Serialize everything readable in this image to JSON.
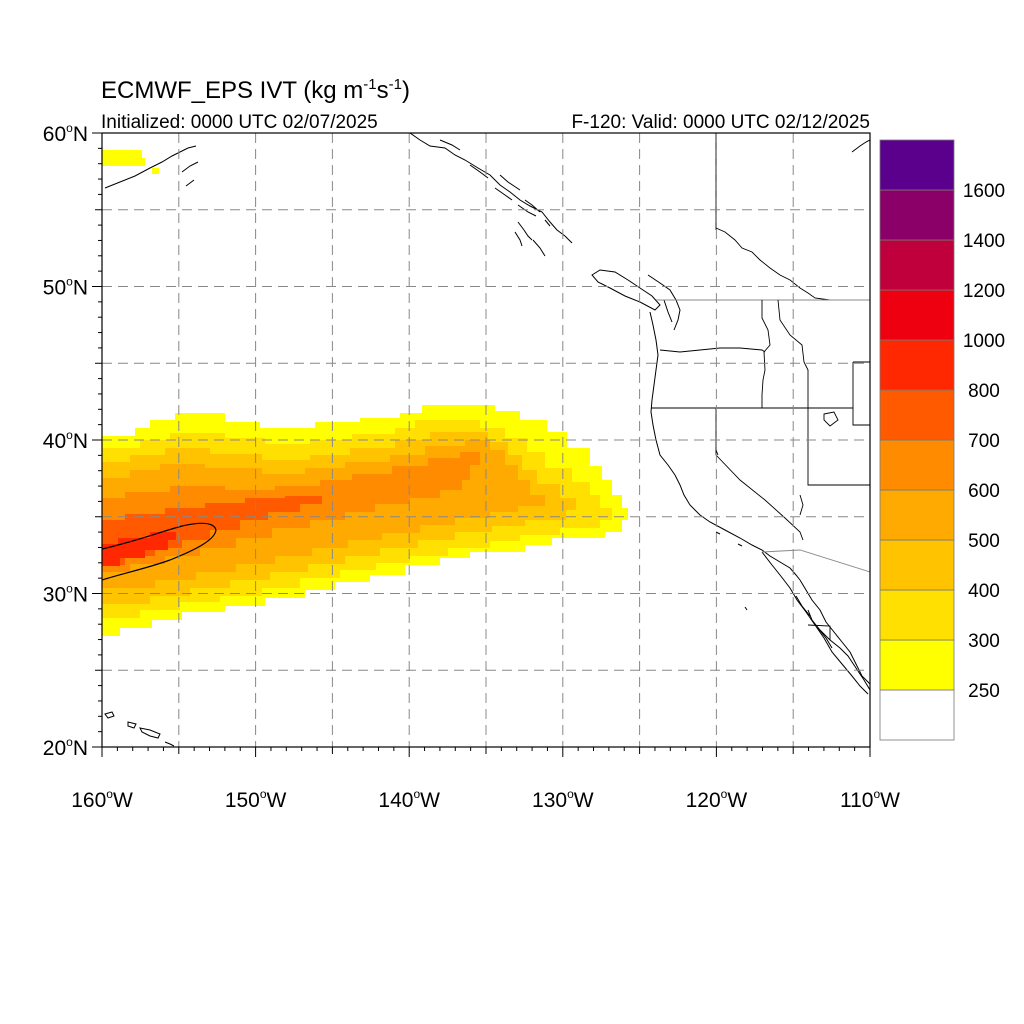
{
  "title": {
    "main": "ECMWF_EPS IVT (kg m",
    "sup1": "-1",
    "mid": "s",
    "sup2": "-1",
    "close": ")"
  },
  "subtitle": {
    "initialized": "Initialized: 0000 UTC 02/07/2025",
    "valid": "F-120: Valid: 0000 UTC 02/12/2025"
  },
  "axes": {
    "lat_labels": [
      {
        "deg": "60",
        "hemi": "N",
        "value": 60
      },
      {
        "deg": "50",
        "hemi": "N",
        "value": 50
      },
      {
        "deg": "40",
        "hemi": "N",
        "value": 40
      },
      {
        "deg": "30",
        "hemi": "N",
        "value": 30
      },
      {
        "deg": "20",
        "hemi": "N",
        "value": 20
      }
    ],
    "lon_labels": [
      {
        "deg": "160",
        "hemi": "W",
        "value": -160
      },
      {
        "deg": "150",
        "hemi": "W",
        "value": -150
      },
      {
        "deg": "140",
        "hemi": "W",
        "value": -140
      },
      {
        "deg": "130",
        "hemi": "W",
        "value": -130
      },
      {
        "deg": "120",
        "hemi": "W",
        "value": -120
      },
      {
        "deg": "110",
        "hemi": "W",
        "value": -110
      }
    ],
    "lon_range": [
      -160,
      -110
    ],
    "lat_range": [
      20,
      60
    ],
    "grid": true
  },
  "colorbar": {
    "units": "kg m-1 s-1",
    "labels": [
      "250",
      "300",
      "400",
      "500",
      "600",
      "700",
      "800",
      "1000",
      "1200",
      "1400",
      "1600"
    ],
    "colors": [
      "#ffffff",
      "#ffff00",
      "#ffe000",
      "#ffc300",
      "#ffaa00",
      "#ff8c00",
      "#ff5a00",
      "#ff2800",
      "#ee0010",
      "#c0003c",
      "#8b0068",
      "#5a008c"
    ]
  },
  "ivt_field": {
    "description_levels": [
      "250",
      "300",
      "400",
      "500",
      "600",
      "700",
      "800"
    ],
    "max_contour_level": "800",
    "max_region": "30–35N, 153–160W"
  }
}
